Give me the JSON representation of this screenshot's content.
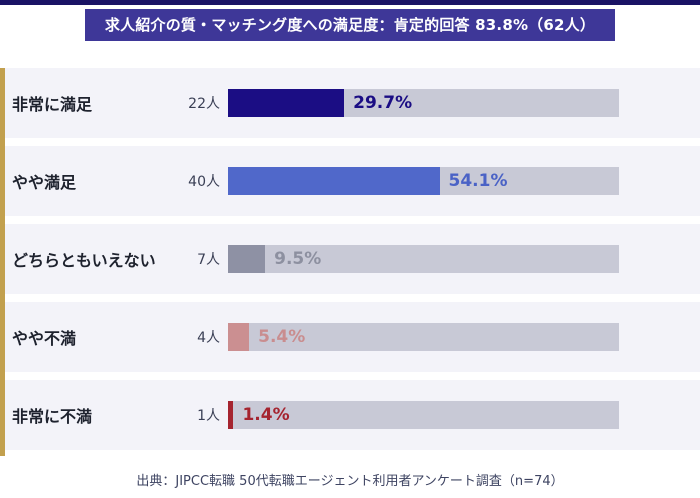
{
  "title": "求人紹介の質・マッチング度への満足度：肯定的回答 83.8%（62人）",
  "footer": "出典：JIPCC転職 50代転職エージェント利用者アンケート調査（n=74）",
  "colors": {
    "top_rule": "#1a1365",
    "title_banner_bg": "#3e3798",
    "title_banner_text": "#ffffff",
    "accent_stripe": "#c2a04e",
    "row_band_bg": "#f3f3f9",
    "bar_track_bg": "#c8c9d6",
    "footer_text": "#3e4462"
  },
  "chart_data": {
    "type": "bar",
    "orientation": "horizontal",
    "title": "求人紹介の質・マッチング度への満足度：肯定的回答 83.8%（62人）",
    "categories": [
      "非常に満足",
      "やや満足",
      "どちらともいえない",
      "やや不満",
      "非常に不満"
    ],
    "counts": [
      "22人",
      "40人",
      "7人",
      "4人",
      "1人"
    ],
    "values": [
      29.7,
      54.1,
      9.5,
      5.4,
      1.4
    ],
    "value_labels": [
      "29.7%",
      "54.1%",
      "9.5%",
      "5.4%",
      "1.4%"
    ],
    "bar_colors": [
      "#1b0d84",
      "#5068ca",
      "#8e91a4",
      "#cb8f91",
      "#a5242f"
    ],
    "label_colors": [
      "#1b0d84",
      "#4a62c6",
      "#8d90a0",
      "#c98d8f",
      "#a5242f"
    ],
    "xlim": [
      0,
      100
    ],
    "xlabel": "",
    "ylabel": "",
    "grid": false,
    "legend": false,
    "source_note": "出典：JIPCC転職 50代転職エージェント利用者アンケート調査（n=74）",
    "n_total": 74,
    "positive_total_label": "肯定的回答 83.8%（62人）"
  }
}
